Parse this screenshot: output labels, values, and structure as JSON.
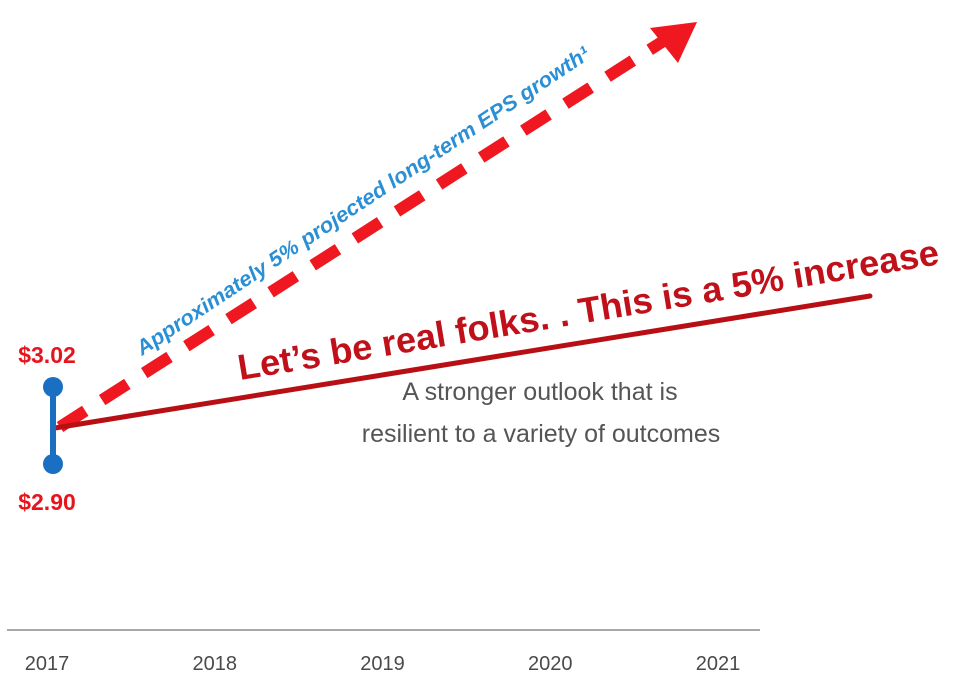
{
  "chart_data": {
    "type": "line",
    "categories": [
      "2017",
      "2018",
      "2019",
      "2020",
      "2021"
    ],
    "range_2017": {
      "high": 3.02,
      "low": 2.9
    },
    "value_labels": {
      "high": "$3.02",
      "low": "$2.90"
    },
    "projection_label": "Approximately 5% projected long-term EPS growth¹",
    "overlay_text": "Let’s be real folks. . This is a 5% increase",
    "subtitle_lines": [
      "A stronger outlook that is",
      "resilient to a variety of outcomes"
    ],
    "grid": false,
    "colors": {
      "range_marker": "#1a6fc2",
      "value_labels": "#e8141c",
      "projection_arrow": "#f01820",
      "projection_label": "#2a8fd4",
      "overlay_line": "#b80f14",
      "overlay_text": "#c0111b",
      "subtitle": "#555555",
      "axis": "#a8a8a8",
      "tick_labels": "#4a4a4a"
    }
  }
}
